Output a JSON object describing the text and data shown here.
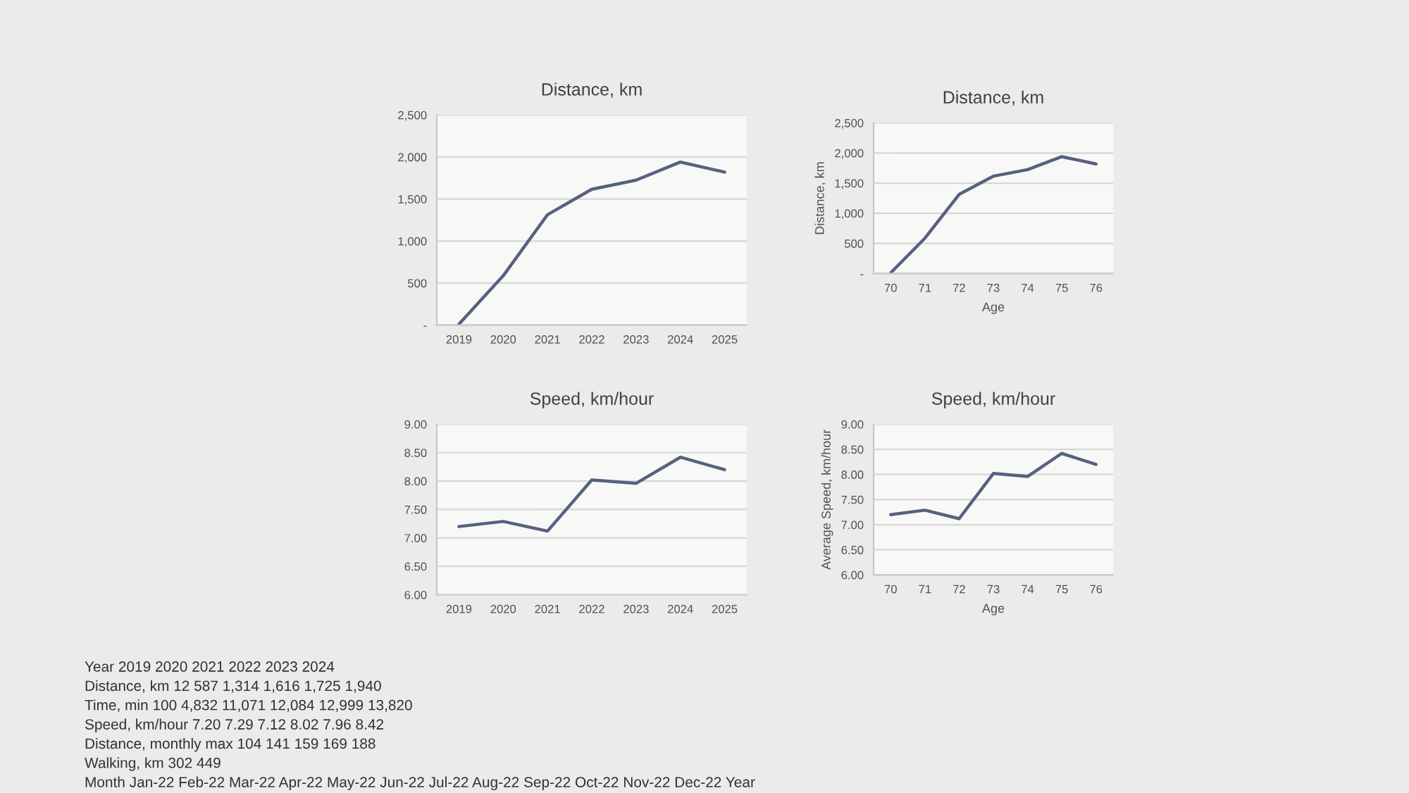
{
  "chart_data": [
    {
      "type": "line",
      "title": "Distance, km",
      "categories": [
        "2019",
        "2020",
        "2021",
        "2022",
        "2023",
        "2024",
        "2025"
      ],
      "values": [
        12,
        587,
        1314,
        1616,
        1725,
        1940,
        1820
      ],
      "color": "#56617f",
      "ylim": [
        0,
        2500
      ],
      "yticks": [
        {
          "value": 0,
          "label": "-"
        },
        500,
        {
          "value": 1000,
          "label": "1,000"
        },
        {
          "value": 1500,
          "label": "1,500"
        },
        {
          "value": 2000,
          "label": "2,000"
        },
        {
          "value": 2500,
          "label": "2,500"
        }
      ],
      "grid": "y"
    },
    {
      "type": "line",
      "title": "Distance, km",
      "xlabel": "Age",
      "ylabel": "Distance, km",
      "categories": [
        "70",
        "71",
        "72",
        "73",
        "74",
        "75",
        "76"
      ],
      "values": [
        12,
        587,
        1314,
        1616,
        1725,
        1940,
        1820
      ],
      "color": "#56617f",
      "ylim": [
        0,
        2500
      ],
      "yticks": [
        {
          "value": 0,
          "label": "-"
        },
        500,
        {
          "value": 1000,
          "label": "1,000"
        },
        {
          "value": 1500,
          "label": "1,500"
        },
        {
          "value": 2000,
          "label": "2,000"
        },
        {
          "value": 2500,
          "label": "2,500"
        }
      ],
      "grid": "y"
    },
    {
      "type": "line",
      "title": "Speed, km/hour",
      "categories": [
        "2019",
        "2020",
        "2021",
        "2022",
        "2023",
        "2024",
        "2025"
      ],
      "values": [
        7.2,
        7.29,
        7.12,
        8.02,
        7.96,
        8.42,
        8.2
      ],
      "color": "#56617f",
      "ylim": [
        6,
        9
      ],
      "yticks": [
        {
          "value": 6,
          "label": "6.00"
        },
        {
          "value": 6.5,
          "label": "6.50"
        },
        {
          "value": 7,
          "label": "7.00"
        },
        {
          "value": 7.5,
          "label": "7.50"
        },
        {
          "value": 8,
          "label": "8.00"
        },
        {
          "value": 8.5,
          "label": "8.50"
        },
        {
          "value": 9,
          "label": "9.00"
        }
      ],
      "grid": "y"
    },
    {
      "type": "line",
      "title": "Speed, km/hour",
      "xlabel": "Age",
      "ylabel": "Average Speed, km/hour",
      "categories": [
        "70",
        "71",
        "72",
        "73",
        "74",
        "75",
        "76"
      ],
      "values": [
        7.2,
        7.29,
        7.12,
        8.02,
        7.96,
        8.42,
        8.2
      ],
      "color": "#56617f",
      "ylim": [
        6,
        9
      ],
      "yticks": [
        {
          "value": 6,
          "label": "6.00"
        },
        {
          "value": 6.5,
          "label": "6.50"
        },
        {
          "value": 7,
          "label": "7.00"
        },
        {
          "value": 7.5,
          "label": "7.50"
        },
        {
          "value": 8,
          "label": "8.00"
        },
        {
          "value": 8.5,
          "label": "8.50"
        },
        {
          "value": 9,
          "label": "9.00"
        }
      ],
      "grid": "y"
    },
    {
      "type": "other",
      "annotations": [
        "Year 2019 2020 2021 2022 2023 2024",
        "Distance, km 12 587 1,314 1,616 1,725 1,940",
        "Time, min 100 4,832 11,071 12,084 12,999 13,820",
        "Speed, km/hour 7.20 7.29 7.12 8.02 7.96 8.42",
        "Distance, monthly max 104 141 159 169 188",
        "Walking, km 302 449",
        "Month Jan-22 Feb-22 Mar-22 Apr-22 May-22 Jun-22 Jul-22 Aug-22 Sep-22 Oct-22 Nov-22 Dec-22 Year"
      ]
    }
  ]
}
